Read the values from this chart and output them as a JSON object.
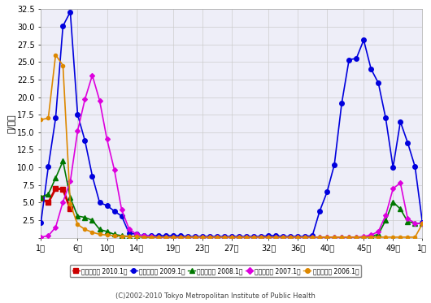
{
  "ylabel": "人/定点",
  "footer": "(C)2002-2010 Tokyo Metropolitan Institute of Public Health",
  "ylim": [
    0.0,
    32.5
  ],
  "yticks": [
    0.0,
    2.5,
    5.0,
    7.5,
    10.0,
    12.5,
    15.0,
    17.5,
    20.0,
    22.5,
    25.0,
    27.5,
    30.0,
    32.5
  ],
  "xtick_labels": [
    "1週",
    "6週",
    "10週",
    "14週",
    "19週",
    "23週",
    "27週",
    "32週",
    "36週",
    "40週",
    "45週",
    "49週",
    "1週"
  ],
  "xtick_positions": [
    1,
    6,
    10,
    14,
    19,
    23,
    27,
    32,
    36,
    40,
    45,
    49,
    53
  ],
  "series": [
    {
      "label": "（東京都） 2010.1～",
      "color": "#cc0000",
      "marker": "s",
      "markersize": 4,
      "linewidth": 2.0,
      "data_x": [
        1,
        2,
        3,
        4,
        5
      ],
      "data_y": [
        5.6,
        5.0,
        7.0,
        6.9,
        4.1
      ]
    },
    {
      "label": "（東京都） 2009.1～",
      "color": "#0000dd",
      "marker": "o",
      "markersize": 4,
      "linewidth": 1.2,
      "data_x": [
        1,
        2,
        3,
        4,
        5,
        6,
        7,
        8,
        9,
        10,
        11,
        12,
        13,
        14,
        15,
        16,
        17,
        18,
        19,
        20,
        21,
        22,
        23,
        24,
        25,
        26,
        27,
        28,
        29,
        30,
        31,
        32,
        33,
        34,
        35,
        36,
        37,
        38,
        39,
        40,
        41,
        42,
        43,
        44,
        45,
        46,
        47,
        48,
        49,
        50,
        51,
        52,
        53
      ],
      "data_y": [
        2.2,
        10.1,
        17.0,
        30.1,
        32.1,
        17.5,
        13.8,
        8.8,
        5.0,
        4.6,
        3.8,
        3.1,
        0.7,
        0.5,
        0.3,
        0.3,
        0.3,
        0.3,
        0.3,
        0.3,
        0.2,
        0.2,
        0.2,
        0.2,
        0.2,
        0.2,
        0.2,
        0.2,
        0.2,
        0.2,
        0.2,
        0.3,
        0.3,
        0.2,
        0.2,
        0.2,
        0.2,
        0.3,
        3.8,
        6.5,
        10.4,
        19.1,
        25.3,
        25.5,
        28.1,
        24.0,
        22.0,
        17.0,
        10.0,
        16.5,
        13.5,
        10.1,
        2.2
      ]
    },
    {
      "label": "（東京都） 2008.1～",
      "color": "#007700",
      "marker": "^",
      "markersize": 4,
      "linewidth": 1.2,
      "data_x": [
        1,
        2,
        3,
        4,
        5,
        6,
        7,
        8,
        9,
        10,
        11,
        12,
        13,
        14,
        15,
        16,
        17,
        18,
        19,
        20,
        21,
        22,
        23,
        24,
        25,
        26,
        27,
        28,
        29,
        30,
        31,
        32,
        33,
        34,
        35,
        36,
        37,
        38,
        39,
        40,
        41,
        42,
        43,
        44,
        45,
        46,
        47,
        48,
        49,
        50,
        51,
        52,
        53
      ],
      "data_y": [
        5.8,
        6.2,
        8.5,
        10.9,
        5.7,
        3.1,
        2.9,
        2.5,
        1.2,
        0.9,
        0.5,
        0.3,
        0.2,
        0.2,
        0.1,
        0.1,
        0.1,
        0.1,
        0.1,
        0.1,
        0.1,
        0.1,
        0.1,
        0.1,
        0.1,
        0.1,
        0.1,
        0.1,
        0.1,
        0.1,
        0.1,
        0.1,
        0.1,
        0.1,
        0.1,
        0.1,
        0.1,
        0.1,
        0.1,
        0.1,
        0.1,
        0.1,
        0.1,
        0.1,
        0.1,
        0.2,
        0.5,
        2.5,
        5.1,
        4.1,
        2.3,
        2.1,
        2.0
      ]
    },
    {
      "label": "（東京都） 2007.1～",
      "color": "#dd00dd",
      "marker": "D",
      "markersize": 3,
      "linewidth": 1.2,
      "data_x": [
        1,
        2,
        3,
        4,
        5,
        6,
        7,
        8,
        9,
        10,
        11,
        12,
        13,
        14,
        15,
        16,
        17,
        18,
        19,
        20,
        21,
        22,
        23,
        24,
        25,
        26,
        27,
        28,
        29,
        30,
        31,
        32,
        33,
        34,
        35,
        36,
        37,
        38,
        39,
        40,
        41,
        42,
        43,
        44,
        45,
        46,
        47,
        48,
        49,
        50,
        51,
        52,
        53
      ],
      "data_y": [
        0.1,
        0.3,
        1.5,
        5.1,
        8.0,
        15.2,
        19.7,
        23.1,
        19.5,
        14.0,
        9.7,
        4.0,
        1.3,
        0.5,
        0.3,
        0.2,
        0.1,
        0.1,
        0.1,
        0.1,
        0.1,
        0.1,
        0.1,
        0.1,
        0.1,
        0.1,
        0.1,
        0.1,
        0.1,
        0.1,
        0.1,
        0.1,
        0.1,
        0.1,
        0.1,
        0.1,
        0.1,
        0.1,
        0.1,
        0.1,
        0.1,
        0.1,
        0.1,
        0.1,
        0.2,
        0.4,
        0.9,
        3.2,
        7.0,
        7.8,
        2.7,
        2.1,
        2.0
      ]
    },
    {
      "label": "（東京都） 2006.1～",
      "color": "#dd8800",
      "marker": "o",
      "markersize": 3,
      "linewidth": 1.2,
      "data_x": [
        1,
        2,
        3,
        4,
        5,
        6,
        7,
        8,
        9,
        10,
        11,
        12,
        13,
        14,
        15,
        16,
        17,
        18,
        19,
        20,
        21,
        22,
        23,
        24,
        25,
        26,
        27,
        28,
        29,
        30,
        31,
        32,
        33,
        34,
        35,
        36,
        37,
        38,
        39,
        40,
        41,
        42,
        43,
        44,
        45,
        46,
        47,
        48,
        49,
        50,
        51,
        52,
        53
      ],
      "data_y": [
        16.8,
        17.0,
        26.0,
        24.5,
        4.8,
        1.9,
        1.2,
        0.8,
        0.5,
        0.4,
        0.3,
        0.2,
        0.2,
        0.2,
        0.1,
        0.1,
        0.1,
        0.1,
        0.1,
        0.1,
        0.1,
        0.1,
        0.1,
        0.1,
        0.1,
        0.1,
        0.1,
        0.1,
        0.1,
        0.1,
        0.1,
        0.1,
        0.1,
        0.1,
        0.1,
        0.1,
        0.1,
        0.1,
        0.1,
        0.1,
        0.1,
        0.1,
        0.1,
        0.1,
        0.1,
        0.1,
        0.1,
        0.1,
        0.1,
        0.1,
        0.1,
        0.1,
        2.0
      ]
    }
  ],
  "background_color": "#ffffff",
  "grid_color": "#cccccc",
  "plot_bg_color": "#eeeef8"
}
